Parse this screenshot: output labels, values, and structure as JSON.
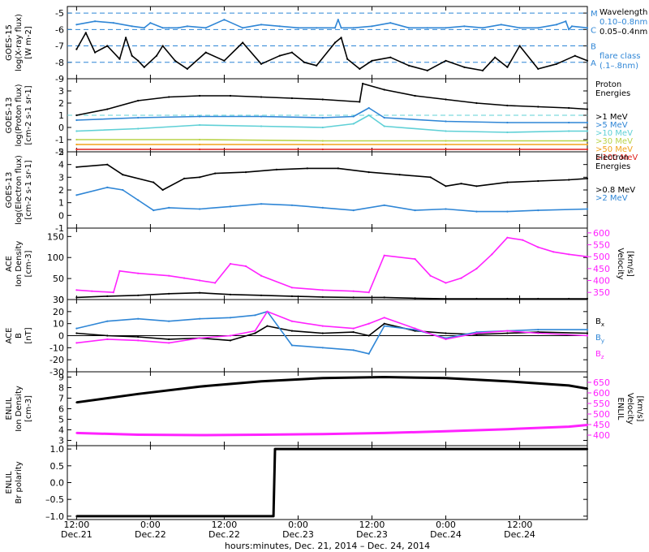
{
  "chart_data": [
    {
      "type": "line",
      "ylabel": [
        "GOES-15",
        "log(X-ray flux)",
        "[W m-2]"
      ],
      "ylim": [
        -9,
        -4.6
      ],
      "yticks": [
        -9,
        -8,
        -7,
        -6,
        -5
      ],
      "flare_levels": [
        {
          "label": "M",
          "value": -5
        },
        {
          "label": "C",
          "value": -6
        },
        {
          "label": "B",
          "value": -7
        },
        {
          "label": "A",
          "value": -8
        }
      ],
      "legend": [
        "Wavelength",
        "0.10–0.8nm",
        "0.05–0.4nm",
        "flare class",
        "(.1–.8nm)"
      ],
      "series": [
        {
          "name": "0.10–0.8nm",
          "color": "#2f86d6",
          "x": [
            0,
            6,
            12,
            18,
            22,
            24,
            28,
            30,
            33,
            36,
            42,
            48,
            54,
            60,
            66,
            72,
            78,
            84,
            85,
            86,
            90,
            96,
            102,
            108,
            114,
            120,
            126,
            132,
            138,
            144,
            150,
            156,
            159,
            160,
            161,
            166
          ],
          "y": [
            -5.7,
            -5.5,
            -5.6,
            -5.8,
            -5.9,
            -5.6,
            -5.9,
            -5.9,
            -5.9,
            -5.8,
            -5.9,
            -5.4,
            -5.9,
            -5.7,
            -5.8,
            -5.9,
            -5.9,
            -5.9,
            -5.4,
            -5.9,
            -5.9,
            -5.8,
            -5.6,
            -5.9,
            -5.9,
            -5.9,
            -5.8,
            -5.9,
            -5.7,
            -5.9,
            -5.9,
            -5.7,
            -5.5,
            -6.0,
            -5.8,
            -5.9
          ]
        },
        {
          "name": "0.05–0.4nm",
          "color": "#000000",
          "x": [
            0,
            3,
            6,
            10,
            14,
            16,
            18,
            20,
            22,
            26,
            28,
            32,
            36,
            42,
            48,
            54,
            60,
            66,
            70,
            74,
            78,
            84,
            86,
            88,
            92,
            96,
            102,
            108,
            114,
            120,
            126,
            132,
            136,
            140,
            144,
            150,
            156,
            162,
            166
          ],
          "y": [
            -7.2,
            -6.2,
            -7.4,
            -7.0,
            -7.8,
            -6.5,
            -7.6,
            -7.9,
            -8.3,
            -7.6,
            -7.0,
            -7.9,
            -8.4,
            -7.4,
            -7.9,
            -6.8,
            -8.1,
            -7.6,
            -7.4,
            -8.0,
            -8.2,
            -6.8,
            -6.5,
            -7.8,
            -8.4,
            -7.9,
            -7.7,
            -8.2,
            -8.5,
            -7.9,
            -8.3,
            -8.5,
            -7.7,
            -8.3,
            -7.0,
            -8.4,
            -8.1,
            -7.6,
            -7.9
          ]
        }
      ]
    },
    {
      "type": "line",
      "ylabel": [
        "GOES-13",
        "log(Proton flux)",
        "[cm-2 s-1 sr-1]"
      ],
      "ylim": [
        -2,
        4
      ],
      "yticks": [
        -2,
        -1,
        0,
        1,
        2,
        3
      ],
      "legend": [
        "Proton",
        "Energies",
        ">1 MeV",
        ">5 MeV",
        ">10 MeV",
        ">30 MeV",
        ">50 MeV",
        ">100 MeV"
      ],
      "series": [
        {
          "name": ">1 MeV",
          "color": "#000000",
          "x": [
            0,
            10,
            20,
            30,
            40,
            50,
            60,
            70,
            80,
            92,
            93,
            100,
            110,
            120,
            130,
            140,
            150,
            160,
            166
          ],
          "y": [
            1.0,
            1.5,
            2.2,
            2.5,
            2.6,
            2.6,
            2.5,
            2.4,
            2.3,
            2.1,
            3.6,
            3.1,
            2.6,
            2.3,
            2.0,
            1.8,
            1.7,
            1.6,
            1.5
          ]
        },
        {
          "name": ">5 MeV",
          "color": "#2f86d6",
          "x": [
            0,
            20,
            40,
            60,
            80,
            90,
            95,
            100,
            120,
            140,
            160,
            166
          ],
          "y": [
            0.6,
            0.8,
            0.9,
            0.9,
            0.8,
            0.9,
            1.6,
            0.8,
            0.5,
            0.4,
            0.4,
            0.4
          ]
        },
        {
          "name": ">10 MeV",
          "color": "#5fd0d6",
          "x": [
            0,
            20,
            40,
            60,
            80,
            90,
            95,
            100,
            120,
            140,
            160,
            166
          ],
          "y": [
            -0.3,
            -0.1,
            0.2,
            0.1,
            0.0,
            0.3,
            1.0,
            0.1,
            -0.3,
            -0.4,
            -0.3,
            -0.3
          ]
        },
        {
          "name": ">30 MeV",
          "color": "#b9d34a",
          "x": [
            0,
            40,
            80,
            120,
            166
          ],
          "y": [
            -1.0,
            -1.0,
            -1.1,
            -1.1,
            -1.1
          ]
        },
        {
          "name": ">50 MeV",
          "color": "#f0a21c",
          "x": [
            0,
            40,
            80,
            120,
            166
          ],
          "y": [
            -1.4,
            -1.4,
            -1.4,
            -1.4,
            -1.4
          ]
        },
        {
          "name": ">100 MeV",
          "color": "#e0221e",
          "x": [
            0,
            40,
            80,
            120,
            166
          ],
          "y": [
            -1.8,
            -1.8,
            -1.8,
            -1.8,
            -1.8
          ]
        }
      ]
    },
    {
      "type": "line",
      "ylabel": [
        "GOES-13",
        "log(Electron flux)",
        "[cm-2 s-1 sr-1]"
      ],
      "ylim": [
        -1,
        5
      ],
      "yticks": [
        -1,
        0,
        1,
        2,
        3,
        4,
        5
      ],
      "legend": [
        "Electron",
        "Energies",
        ">0.8 MeV",
        ">2 MeV"
      ],
      "series": [
        {
          "name": ">0.8 MeV",
          "color": "#000000",
          "x": [
            0,
            10,
            15,
            25,
            28,
            35,
            40,
            45,
            55,
            65,
            75,
            85,
            95,
            105,
            115,
            120,
            125,
            130,
            140,
            150,
            160,
            166
          ],
          "y": [
            3.8,
            4.0,
            3.2,
            2.6,
            2.0,
            2.9,
            3.0,
            3.3,
            3.4,
            3.6,
            3.7,
            3.7,
            3.4,
            3.2,
            3.0,
            2.3,
            2.5,
            2.3,
            2.6,
            2.7,
            2.8,
            2.9
          ]
        },
        {
          "name": ">2 MeV",
          "color": "#2f86d6",
          "x": [
            0,
            10,
            15,
            20,
            25,
            30,
            40,
            50,
            60,
            70,
            80,
            90,
            100,
            110,
            120,
            130,
            140,
            150,
            166
          ],
          "y": [
            1.6,
            2.2,
            2.0,
            1.2,
            0.4,
            0.6,
            0.5,
            0.7,
            0.9,
            0.8,
            0.6,
            0.4,
            0.8,
            0.4,
            0.5,
            0.3,
            0.3,
            0.4,
            0.5
          ]
        }
      ]
    },
    {
      "type": "line",
      "ylabel": [
        "ACE",
        "Ion Density",
        "[cm-3]"
      ],
      "ylim": [
        0,
        170
      ],
      "yticks": [
        0,
        50,
        100,
        150
      ],
      "ylabel_right": [
        "Velocity",
        "[km/s]"
      ],
      "ylim_right": [
        320,
        620
      ],
      "yticks_right": [
        350,
        400,
        450,
        500,
        550,
        600
      ],
      "series": [
        {
          "name": "Ion Density",
          "color": "#000000",
          "x": [
            0,
            10,
            20,
            30,
            40,
            50,
            60,
            70,
            80,
            90,
            100,
            110,
            120,
            130,
            140,
            150,
            160,
            166
          ],
          "y": [
            5,
            8,
            10,
            14,
            16,
            12,
            10,
            8,
            6,
            5,
            5,
            3,
            2,
            2,
            2,
            2,
            2,
            2
          ]
        },
        {
          "name": "Velocity",
          "color": "#ff22ff",
          "axis": "right",
          "x": [
            0,
            5,
            12,
            14,
            20,
            30,
            35,
            40,
            45,
            50,
            55,
            60,
            70,
            80,
            90,
            95,
            100,
            110,
            115,
            120,
            125,
            130,
            135,
            140,
            145,
            150,
            155,
            160,
            166
          ],
          "y": [
            360,
            355,
            350,
            440,
            430,
            420,
            410,
            400,
            390,
            470,
            460,
            420,
            370,
            360,
            355,
            350,
            505,
            490,
            420,
            390,
            410,
            450,
            510,
            580,
            570,
            540,
            520,
            510,
            500
          ]
        }
      ]
    },
    {
      "type": "line",
      "ylabel": [
        "ACE",
        "B",
        "[nT]"
      ],
      "ylim": [
        -30,
        30
      ],
      "yticks": [
        -30,
        -20,
        -10,
        0,
        10,
        20,
        30
      ],
      "legend": [
        "Bx",
        "By",
        "Bz"
      ],
      "series": [
        {
          "name": "Bx",
          "color": "#000000",
          "x": [
            0,
            10,
            20,
            30,
            40,
            50,
            58,
            62,
            70,
            80,
            90,
            95,
            100,
            110,
            120,
            130,
            140,
            150,
            166
          ],
          "y": [
            2,
            0,
            -1,
            -3,
            -2,
            -4,
            2,
            8,
            4,
            2,
            3,
            0,
            10,
            4,
            2,
            1,
            2,
            3,
            2
          ]
        },
        {
          "name": "By",
          "color": "#2f86d6",
          "x": [
            0,
            10,
            20,
            30,
            40,
            50,
            58,
            62,
            70,
            80,
            90,
            95,
            100,
            110,
            120,
            130,
            140,
            150,
            166
          ],
          "y": [
            6,
            12,
            14,
            12,
            14,
            15,
            17,
            20,
            -8,
            -10,
            -12,
            -15,
            8,
            5,
            -2,
            3,
            4,
            5,
            5
          ]
        },
        {
          "name": "Bz",
          "color": "#ff22ff",
          "x": [
            0,
            10,
            20,
            30,
            40,
            50,
            58,
            62,
            70,
            80,
            90,
            95,
            100,
            110,
            120,
            130,
            140,
            150,
            166
          ],
          "y": [
            -6,
            -3,
            -4,
            -6,
            -2,
            0,
            4,
            20,
            12,
            8,
            6,
            10,
            15,
            6,
            -3,
            2,
            4,
            2,
            0
          ]
        }
      ]
    },
    {
      "type": "line",
      "ylabel": [
        "ENLIL",
        "Ion Density",
        "[cm-3]"
      ],
      "ylim": [
        2.5,
        9.5
      ],
      "yticks": [
        3,
        4,
        5,
        6,
        7,
        8,
        9
      ],
      "ylabel_right": [
        "ENLIL",
        "Velocity",
        "[km/s]"
      ],
      "ylim_right": [
        350,
        700
      ],
      "yticks_right": [
        400,
        450,
        500,
        550,
        600,
        650
      ],
      "series": [
        {
          "name": "Ion Density",
          "color": "#000000",
          "x": [
            0,
            20,
            40,
            60,
            80,
            100,
            120,
            140,
            160,
            166
          ],
          "y": [
            6.6,
            7.4,
            8.1,
            8.6,
            8.9,
            9.0,
            8.9,
            8.6,
            8.2,
            7.9
          ]
        },
        {
          "name": "Velocity",
          "color": "#ff22ff",
          "axis": "right",
          "x": [
            0,
            20,
            40,
            60,
            80,
            100,
            120,
            140,
            160,
            166
          ],
          "y": [
            410,
            402,
            400,
            402,
            405,
            410,
            418,
            428,
            440,
            448
          ]
        }
      ]
    },
    {
      "type": "line",
      "ylabel": [
        "ENLIL",
        "Br polarity"
      ],
      "ylim": [
        -1.1,
        1.1
      ],
      "yticks": [
        -1.0,
        -0.5,
        0.0,
        0.5,
        1.0
      ],
      "yticklabels": [
        "–1.0",
        "–0.5",
        "0.0",
        "0.5",
        "1.0"
      ],
      "series": [
        {
          "name": "Br polarity",
          "color": "#000000",
          "x": [
            0,
            64,
            64.5,
            166
          ],
          "y": [
            -1,
            -1,
            1,
            1
          ]
        }
      ]
    }
  ],
  "x_axis": {
    "xlim": [
      -3,
      166
    ],
    "ticks": [
      {
        "value": 0,
        "time": "12:00",
        "date": "Dec.21"
      },
      {
        "value": 24,
        "time": "0:00",
        "date": "Dec.22"
      },
      {
        "value": 48,
        "time": "12:00",
        "date": "Dec.22"
      },
      {
        "value": 72,
        "time": "0:00",
        "date": "Dec.23"
      },
      {
        "value": 96,
        "time": "12:00",
        "date": "Dec.23"
      },
      {
        "value": 120,
        "time": "0:00",
        "date": "Dec.24"
      },
      {
        "value": 144,
        "time": "12:00",
        "date": "Dec.24"
      }
    ],
    "label": "hours:minutes, Dec. 21, 2014 – Dec. 24, 2014"
  }
}
